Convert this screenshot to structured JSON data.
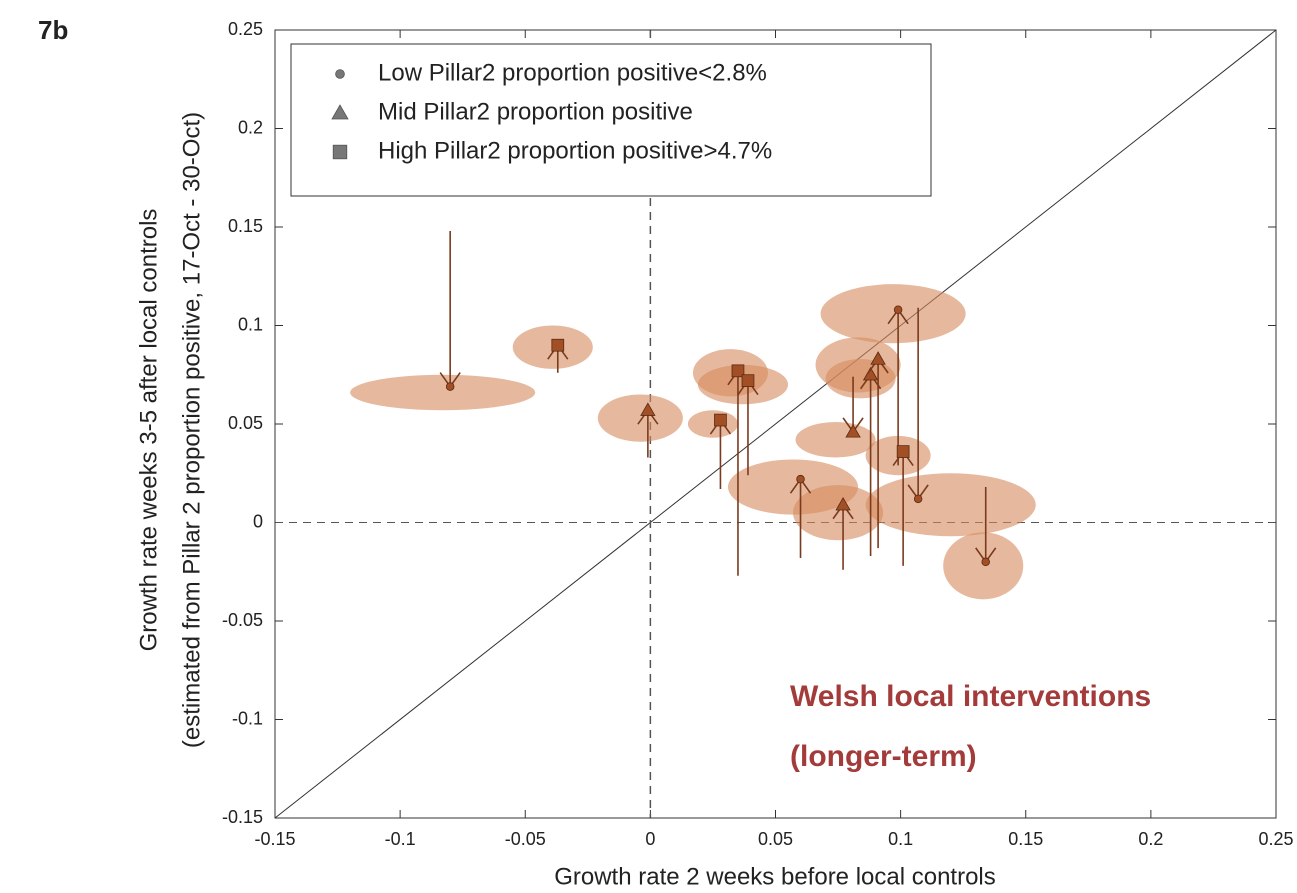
{
  "chart_data": {
    "type": "scatter",
    "panel_label": "7b",
    "x_label": "Growth rate 2 weeks before local controls",
    "y_label": [
      "Growth rate weeks 3-5 after local controls",
      "(estimated from Pillar 2 proportion positive, 17-Oct - 30-Oct)"
    ],
    "annotation": [
      "Welsh local interventions",
      "(longer-term)"
    ],
    "xlim": [
      -0.15,
      0.25
    ],
    "ylim": [
      -0.15,
      0.25
    ],
    "xticks": [
      -0.15,
      -0.1,
      -0.05,
      0,
      0.05,
      0.1,
      0.15,
      0.2,
      0.25
    ],
    "yticks": [
      -0.15,
      -0.1,
      -0.05,
      0,
      0.05,
      0.1,
      0.15,
      0.2,
      0.25
    ],
    "dashed_lines": {
      "x": 0,
      "y": 0
    },
    "identity_line": true,
    "legend_position": "upper left",
    "marker_color": "#a24f26",
    "ellipse_color": "#d68a5e",
    "arrow_color": "#7a3a1c",
    "series": [
      {
        "name": "Low Pillar2 proportion positive<2.8%",
        "marker": "circle",
        "points": [
          {
            "x": -0.08,
            "y": 0.069,
            "y_start": 0.148,
            "ex": -0.083,
            "ey": 0.066,
            "erx": 0.037,
            "ery": 0.009
          },
          {
            "x": 0.06,
            "y": 0.022,
            "y_start": -0.018,
            "ex": 0.057,
            "ey": 0.018,
            "erx": 0.026,
            "ery": 0.014
          },
          {
            "x": 0.099,
            "y": 0.108,
            "y_start": 0.029,
            "ex": 0.097,
            "ey": 0.106,
            "erx": 0.029,
            "ery": 0.015
          },
          {
            "x": 0.107,
            "y": 0.012,
            "y_start": 0.109,
            "ex": 0.12,
            "ey": 0.009,
            "erx": 0.034,
            "ery": 0.016
          },
          {
            "x": 0.134,
            "y": -0.02,
            "y_start": 0.018,
            "ex": 0.133,
            "ey": -0.022,
            "erx": 0.016,
            "ery": 0.017
          }
        ]
      },
      {
        "name": "Mid Pillar2 proportion positive",
        "marker": "triangle",
        "points": [
          {
            "x": -0.001,
            "y": 0.057,
            "y_start": 0.033,
            "ex": -0.004,
            "ey": 0.053,
            "erx": 0.017,
            "ery": 0.012
          },
          {
            "x": 0.077,
            "y": 0.009,
            "y_start": -0.024,
            "ex": 0.075,
            "ey": 0.005,
            "erx": 0.018,
            "ery": 0.014
          },
          {
            "x": 0.081,
            "y": 0.046,
            "y_start": 0.074,
            "ex": 0.074,
            "ey": 0.042,
            "erx": 0.016,
            "ery": 0.009
          },
          {
            "x": 0.088,
            "y": 0.075,
            "y_start": -0.017,
            "ex": 0.083,
            "ey": 0.08,
            "erx": 0.017,
            "ery": 0.014
          },
          {
            "x": 0.091,
            "y": 0.083,
            "y_start": -0.013,
            "ex": 0.084,
            "ey": 0.073,
            "erx": 0.014,
            "ery": 0.01
          }
        ]
      },
      {
        "name": "High Pillar2 proportion positive>4.7%",
        "marker": "square",
        "points": [
          {
            "x": -0.037,
            "y": 0.09,
            "y_start": 0.076,
            "ex": -0.039,
            "ey": 0.089,
            "erx": 0.016,
            "ery": 0.011
          },
          {
            "x": 0.028,
            "y": 0.052,
            "y_start": 0.017,
            "ex": 0.025,
            "ey": 0.05,
            "erx": 0.01,
            "ery": 0.007
          },
          {
            "x": 0.035,
            "y": 0.077,
            "y_start": -0.027,
            "ex": 0.032,
            "ey": 0.076,
            "erx": 0.015,
            "ery": 0.012
          },
          {
            "x": 0.039,
            "y": 0.072,
            "y_start": 0.024,
            "ex": 0.037,
            "ey": 0.07,
            "erx": 0.018,
            "ery": 0.01
          },
          {
            "x": 0.101,
            "y": 0.036,
            "y_start": -0.022,
            "ex": 0.099,
            "ey": 0.034,
            "erx": 0.013,
            "ery": 0.01
          }
        ]
      }
    ]
  }
}
